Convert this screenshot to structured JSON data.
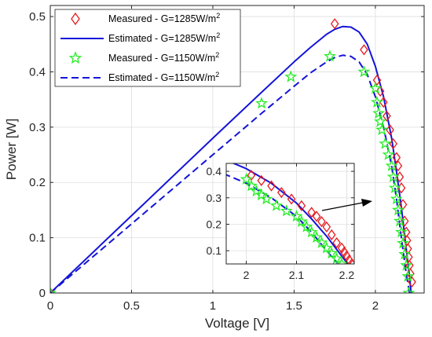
{
  "chart_data": {
    "type": "line",
    "xlabel": "Voltage [V]",
    "ylabel": "Power [W]",
    "xlim": [
      0,
      2.3
    ],
    "ylim": [
      0,
      0.52
    ],
    "xticks": [
      0,
      0.5,
      1,
      1.5,
      2
    ],
    "xtick_labels": [
      "0",
      "0.5",
      "1",
      "1.5",
      "2"
    ],
    "yticks": [
      0,
      0.1,
      0.2,
      0.3,
      0.4,
      0.5
    ],
    "ytick_labels": [
      "0",
      "0.1",
      "0.2",
      "0.3",
      "0.4",
      "0.5"
    ],
    "grid": true,
    "legend_position": "top-left",
    "colors": {
      "measured_1285": "#e8191c",
      "estimated_1285": "#1414d8",
      "measured_1150": "#22ee22",
      "estimated_1150": "#1414d8"
    },
    "series": [
      {
        "name": "Measured - G=1285W/m²",
        "style": "diamond-markers",
        "x": [
          0.0,
          1.75,
          1.93,
          2.01,
          2.03,
          2.05,
          2.07,
          2.09,
          2.11,
          2.13,
          2.14,
          2.15,
          2.16,
          2.17,
          2.18,
          2.19,
          2.195,
          2.2,
          2.205,
          2.21,
          2.215,
          2.225
        ],
        "y": [
          0.0,
          0.487,
          0.44,
          0.385,
          0.365,
          0.345,
          0.32,
          0.295,
          0.27,
          0.245,
          0.23,
          0.21,
          0.19,
          0.16,
          0.13,
          0.11,
          0.095,
          0.08,
          0.065,
          0.05,
          0.035,
          0.02
        ]
      },
      {
        "name": "Estimated - G=1285W/m²",
        "style": "solid",
        "x": [
          0.0,
          0.5,
          1.0,
          1.3,
          1.5,
          1.6,
          1.7,
          1.75,
          1.8,
          1.85,
          1.9,
          1.95,
          2.0,
          2.05,
          2.1,
          2.13,
          2.16,
          2.19,
          2.2,
          2.21,
          2.22
        ],
        "y": [
          0.0,
          0.14,
          0.28,
          0.363,
          0.418,
          0.444,
          0.468,
          0.477,
          0.482,
          0.481,
          0.472,
          0.45,
          0.41,
          0.355,
          0.28,
          0.22,
          0.155,
          0.08,
          0.055,
          0.03,
          0.0
        ]
      },
      {
        "name": "Measured - G=1150W/m²",
        "style": "star-markers",
        "x": [
          0.0,
          1.3,
          1.48,
          1.72,
          1.93,
          2.0,
          2.01,
          2.02,
          2.03,
          2.04,
          2.06,
          2.08,
          2.1,
          2.11,
          2.12,
          2.13,
          2.14,
          2.15,
          2.16,
          2.17,
          2.18,
          2.19,
          2.2,
          2.205
        ],
        "y": [
          0.0,
          0.343,
          0.391,
          0.428,
          0.4,
          0.37,
          0.345,
          0.325,
          0.31,
          0.295,
          0.27,
          0.25,
          0.23,
          0.21,
          0.19,
          0.17,
          0.15,
          0.13,
          0.11,
          0.09,
          0.07,
          0.05,
          0.03,
          0.0
        ]
      },
      {
        "name": "Estimated - G=1150W/m²",
        "style": "dashed",
        "x": [
          0.0,
          0.5,
          1.0,
          1.3,
          1.5,
          1.6,
          1.7,
          1.75,
          1.8,
          1.85,
          1.9,
          1.95,
          2.0,
          2.05,
          2.1,
          2.13,
          2.16,
          2.19,
          2.21
        ],
        "y": [
          0.0,
          0.125,
          0.25,
          0.325,
          0.374,
          0.398,
          0.418,
          0.426,
          0.43,
          0.428,
          0.418,
          0.395,
          0.355,
          0.3,
          0.23,
          0.17,
          0.1,
          0.035,
          0.0
        ]
      }
    ],
    "inset": {
      "xlim": [
        1.96,
        2.215
      ],
      "ylim": [
        0.05,
        0.43
      ],
      "xticks": [
        2,
        2.1,
        2.2
      ],
      "xtick_labels": [
        "2",
        "2.1",
        "2.2"
      ],
      "yticks": [
        0.1,
        0.2,
        0.3,
        0.4
      ],
      "ytick_labels": [
        "0.1",
        "0.2",
        "0.3",
        "0.4"
      ],
      "pointer": "arrow from inset to main curves near V=2.2"
    }
  },
  "legend": {
    "m1_text": "Measured - G=1285W/m",
    "e1_text": "Estimated - G=1285W/m",
    "m2_text": "Measured - G=1150W/m",
    "e2_text": "Estimated - G=1150W/m",
    "sup": "2"
  }
}
